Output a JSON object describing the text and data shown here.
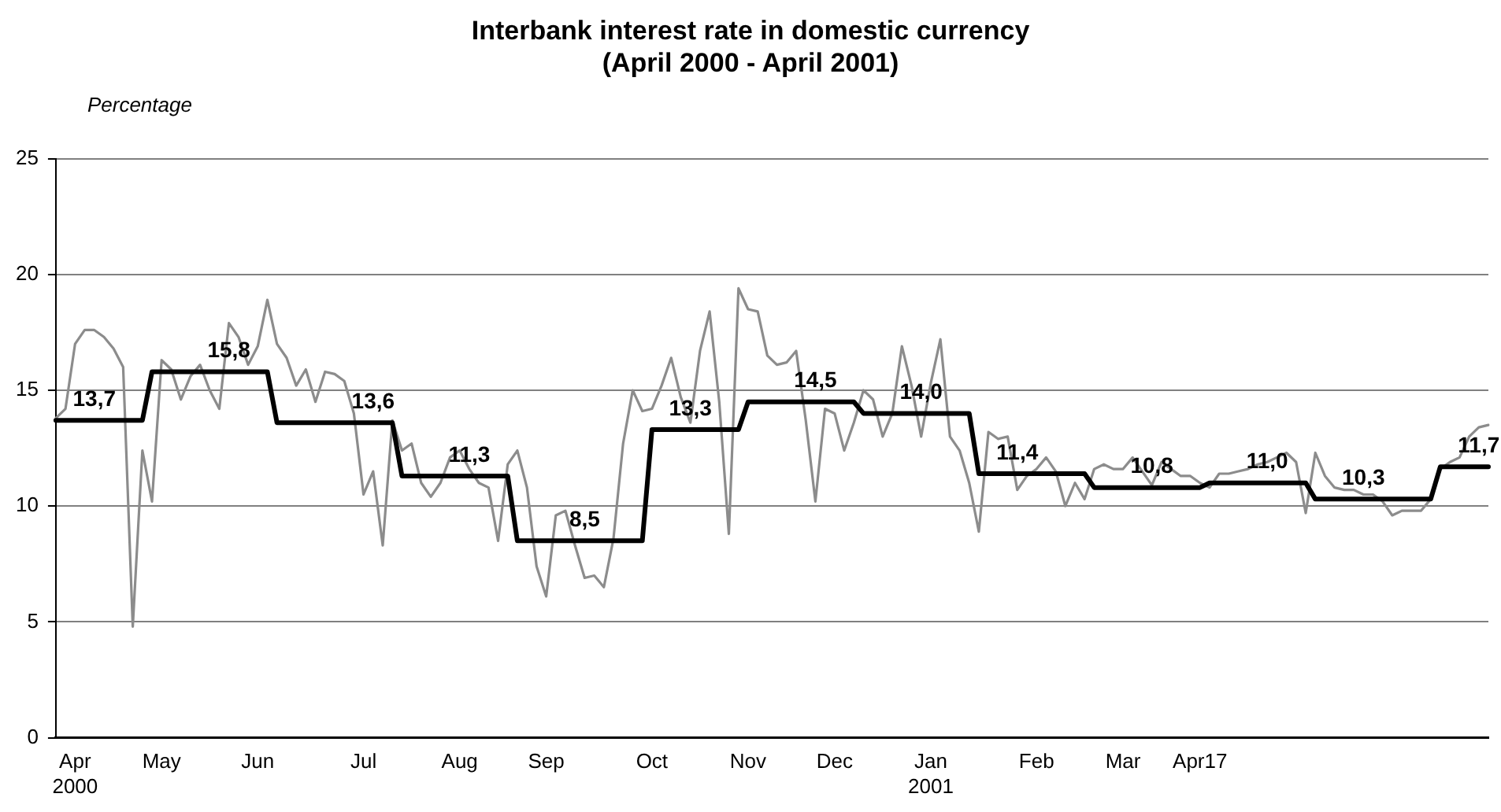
{
  "chart_data": {
    "type": "line",
    "title": "Interbank interest rate in domestic currency\n(April 2000 - April 2001)",
    "ylabel": "Percentage",
    "categories": [
      null,
      null,
      "Apr 2000",
      null,
      null,
      null,
      null,
      null,
      null,
      null,
      null,
      "May",
      null,
      null,
      null,
      null,
      null,
      null,
      null,
      null,
      null,
      "Jun",
      null,
      null,
      null,
      null,
      null,
      null,
      null,
      null,
      null,
      null,
      "Jul",
      null,
      null,
      null,
      null,
      null,
      null,
      null,
      null,
      null,
      "Aug",
      null,
      null,
      null,
      null,
      null,
      null,
      null,
      null,
      "Sep",
      null,
      null,
      null,
      null,
      null,
      null,
      null,
      null,
      null,
      null,
      "Oct",
      null,
      null,
      null,
      null,
      null,
      null,
      null,
      null,
      null,
      "Nov",
      null,
      null,
      null,
      null,
      null,
      null,
      null,
      null,
      "Dec",
      null,
      null,
      null,
      null,
      null,
      null,
      null,
      null,
      null,
      "Jan 2001",
      null,
      null,
      null,
      null,
      null,
      null,
      null,
      null,
      null,
      null,
      "Feb",
      null,
      null,
      null,
      null,
      null,
      null,
      null,
      null,
      "Mar",
      null,
      null,
      null,
      null,
      null,
      null,
      null,
      "Apr17",
      null,
      null,
      null,
      null,
      null,
      null,
      null,
      null,
      null,
      null,
      null,
      null,
      null,
      null,
      null,
      null,
      null,
      null,
      null,
      null,
      null,
      null,
      null,
      null,
      null,
      null,
      null,
      null,
      null,
      null
    ],
    "series": [
      {
        "color": "#8c8c8c",
        "values": [
          13.8,
          14.2,
          17.0,
          17.6,
          17.6,
          17.3,
          16.8,
          16.0,
          4.8,
          12.4,
          10.2,
          16.3,
          15.9,
          14.6,
          15.6,
          16.1,
          15.0,
          14.2,
          17.9,
          17.3,
          16.1,
          16.9,
          18.9,
          17.0,
          16.4,
          15.2,
          15.9,
          14.5,
          15.8,
          15.7,
          15.4,
          14.0,
          10.5,
          11.5,
          8.3,
          13.7,
          12.4,
          12.7,
          11.0,
          10.4,
          11.0,
          12.1,
          12.4,
          11.6,
          11.0,
          10.8,
          8.5,
          11.8,
          12.4,
          10.8,
          7.4,
          6.1,
          9.6,
          9.8,
          8.3,
          6.9,
          7.0,
          6.5,
          8.6,
          12.7,
          15.0,
          14.1,
          14.2,
          15.2,
          16.4,
          14.7,
          13.6,
          16.7,
          18.4,
          14.5,
          8.8,
          19.4,
          18.5,
          18.4,
          16.5,
          16.1,
          16.2,
          16.7,
          13.7,
          10.2,
          14.2,
          14.0,
          12.4,
          13.6,
          15.0,
          14.6,
          13.0,
          14.0,
          16.9,
          15.2,
          13.0,
          15.3,
          17.2,
          13.0,
          12.4,
          11.0,
          8.9,
          13.2,
          12.9,
          13.0,
          10.7,
          11.3,
          11.6,
          12.1,
          11.5,
          10.0,
          11.0,
          10.3,
          11.6,
          11.8,
          11.6,
          11.6,
          12.1,
          11.5,
          10.9,
          11.9,
          11.6,
          11.3,
          11.3,
          11.0,
          10.8,
          11.4,
          11.4,
          11.5,
          11.6,
          11.8,
          11.9,
          12.1,
          12.3,
          11.9,
          9.7,
          12.3,
          11.3,
          10.8,
          10.7,
          10.7,
          10.5,
          10.5,
          10.2,
          9.6,
          9.8,
          9.8,
          9.8,
          10.3,
          11.6,
          11.9,
          12.1,
          13.0,
          13.4,
          13.5
        ]
      },
      {
        "color": "#000000",
        "values": [
          13.7,
          13.7,
          13.7,
          13.7,
          13.7,
          13.7,
          13.7,
          13.7,
          13.7,
          13.7,
          15.8,
          15.8,
          15.8,
          15.8,
          15.8,
          15.8,
          15.8,
          15.8,
          15.8,
          15.8,
          15.8,
          15.8,
          15.8,
          13.6,
          13.6,
          13.6,
          13.6,
          13.6,
          13.6,
          13.6,
          13.6,
          13.6,
          13.6,
          13.6,
          13.6,
          13.6,
          11.3,
          11.3,
          11.3,
          11.3,
          11.3,
          11.3,
          11.3,
          11.3,
          11.3,
          11.3,
          11.3,
          11.3,
          8.5,
          8.5,
          8.5,
          8.5,
          8.5,
          8.5,
          8.5,
          8.5,
          8.5,
          8.5,
          8.5,
          8.5,
          8.5,
          8.5,
          13.3,
          13.3,
          13.3,
          13.3,
          13.3,
          13.3,
          13.3,
          13.3,
          13.3,
          13.3,
          14.5,
          14.5,
          14.5,
          14.5,
          14.5,
          14.5,
          14.5,
          14.5,
          14.5,
          14.5,
          14.5,
          14.5,
          14.0,
          14.0,
          14.0,
          14.0,
          14.0,
          14.0,
          14.0,
          14.0,
          14.0,
          14.0,
          14.0,
          14.0,
          11.4,
          11.4,
          11.4,
          11.4,
          11.4,
          11.4,
          11.4,
          11.4,
          11.4,
          11.4,
          11.4,
          11.4,
          10.8,
          10.8,
          10.8,
          10.8,
          10.8,
          10.8,
          10.8,
          10.8,
          10.8,
          10.8,
          10.8,
          10.8,
          11.0,
          11.0,
          11.0,
          11.0,
          11.0,
          11.0,
          11.0,
          11.0,
          11.0,
          11.0,
          11.0,
          10.3,
          10.3,
          10.3,
          10.3,
          10.3,
          10.3,
          10.3,
          10.3,
          10.3,
          10.3,
          10.3,
          10.3,
          10.3,
          11.7,
          11.7,
          11.7,
          11.7,
          11.7,
          11.7
        ],
        "value_labels": [
          null,
          null,
          null,
          null,
          "13,7",
          null,
          null,
          null,
          null,
          null,
          null,
          null,
          null,
          null,
          null,
          null,
          null,
          null,
          "15,8",
          null,
          null,
          null,
          null,
          null,
          null,
          null,
          null,
          null,
          null,
          null,
          null,
          null,
          null,
          "13,6",
          null,
          null,
          null,
          null,
          null,
          null,
          null,
          null,
          null,
          "11,3",
          null,
          null,
          null,
          null,
          null,
          null,
          null,
          null,
          null,
          null,
          null,
          "8,5",
          null,
          null,
          null,
          null,
          null,
          null,
          null,
          null,
          null,
          null,
          "13,3",
          null,
          null,
          null,
          null,
          null,
          null,
          null,
          null,
          null,
          null,
          null,
          null,
          "14,5",
          null,
          null,
          null,
          null,
          null,
          null,
          null,
          null,
          null,
          null,
          "14,0",
          null,
          null,
          null,
          null,
          null,
          null,
          null,
          null,
          null,
          "11,4",
          null,
          null,
          null,
          null,
          null,
          null,
          null,
          null,
          null,
          null,
          null,
          null,
          null,
          "10,8",
          null,
          null,
          null,
          null,
          null,
          null,
          null,
          null,
          null,
          null,
          null,
          "11,0",
          null,
          null,
          null,
          null,
          null,
          null,
          null,
          null,
          null,
          "10,3",
          null,
          null,
          null,
          null,
          null,
          null,
          null,
          null,
          null,
          null,
          null,
          "11,7",
          null
        ]
      }
    ],
    "ylim": [
      0,
      25
    ],
    "yticks": [
      0,
      5,
      10,
      15,
      20,
      25
    ],
    "grid": "y",
    "legend": false,
    "marker": "none",
    "line_style": "solid"
  }
}
